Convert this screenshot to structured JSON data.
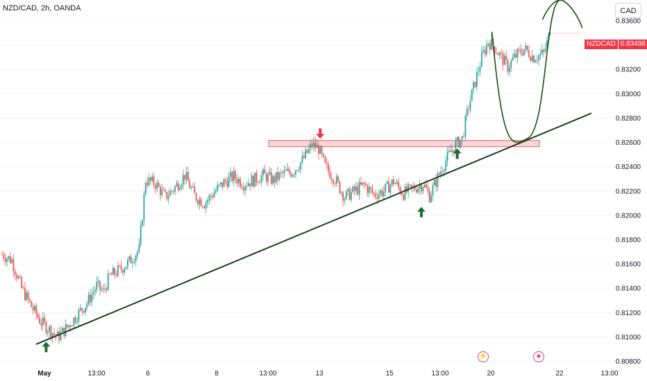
{
  "header": {
    "symbol_title": "NZD/CAD, 2h, OANDA",
    "currency_button": "CAD"
  },
  "price_tag": {
    "symbol": "NZDCAD",
    "value": "0.83498"
  },
  "colors": {
    "up": "#26a69a",
    "down": "#ef5350",
    "trendline": "#1f3a1f",
    "projection": "#1b4d1b",
    "zone_fill": "#f7c9cc",
    "zone_border": "#e45c67",
    "arrow_up": "#1e6b31",
    "arrow_down": "#f23645"
  },
  "events": [
    {
      "icon": "lightning-icon",
      "label": "20"
    },
    {
      "icon": "canada-flag-icon",
      "label": "22"
    }
  ],
  "chart_data": {
    "type": "candlestick",
    "symbol": "NZD/CAD",
    "timeframe": "2h",
    "broker": "OANDA",
    "ylim": [
      0.8078,
      0.8368
    ],
    "y_ticks": [
      "0.83600",
      "0.83400",
      "0.83200",
      "0.83000",
      "0.82800",
      "0.82600",
      "0.82400",
      "0.82200",
      "0.82000",
      "0.81800",
      "0.81600",
      "0.81400",
      "0.81200",
      "0.81000",
      "0.80800"
    ],
    "x_ticks": [
      "May",
      "13:00",
      "6",
      "8",
      "13:00",
      "13",
      "15",
      "13:00",
      "20",
      "22",
      "13:00"
    ],
    "x_tick_bold": [
      "May"
    ],
    "last_price": 0.83498,
    "close_path": [
      [
        0,
        0.8168
      ],
      [
        6,
        0.8163
      ],
      [
        12,
        0.814
      ],
      [
        18,
        0.8125
      ],
      [
        24,
        0.8112
      ],
      [
        30,
        0.8105
      ],
      [
        34,
        0.81
      ],
      [
        40,
        0.8108
      ],
      [
        46,
        0.8118
      ],
      [
        52,
        0.8128
      ],
      [
        58,
        0.8142
      ],
      [
        62,
        0.8137
      ],
      [
        66,
        0.815
      ],
      [
        72,
        0.8155
      ],
      [
        78,
        0.8162
      ],
      [
        84,
        0.8172
      ],
      [
        88,
        0.8229
      ],
      [
        94,
        0.8226
      ],
      [
        100,
        0.8215
      ],
      [
        106,
        0.8223
      ],
      [
        112,
        0.8233
      ],
      [
        118,
        0.8216
      ],
      [
        124,
        0.821
      ],
      [
        130,
        0.8219
      ],
      [
        136,
        0.8227
      ],
      [
        142,
        0.8232
      ],
      [
        148,
        0.8226
      ],
      [
        154,
        0.8229
      ],
      [
        160,
        0.8233
      ],
      [
        166,
        0.8229
      ],
      [
        172,
        0.8234
      ],
      [
        178,
        0.8236
      ],
      [
        184,
        0.8245
      ],
      [
        190,
        0.8258
      ],
      [
        194,
        0.8255
      ],
      [
        198,
        0.824
      ],
      [
        204,
        0.823
      ],
      [
        210,
        0.8215
      ],
      [
        216,
        0.822
      ],
      [
        222,
        0.8225
      ],
      [
        228,
        0.8217
      ],
      [
        234,
        0.822
      ],
      [
        240,
        0.8228
      ],
      [
        246,
        0.8218
      ],
      [
        252,
        0.8222
      ],
      [
        258,
        0.8226
      ],
      [
        262,
        0.8216
      ],
      [
        266,
        0.8228
      ],
      [
        270,
        0.824
      ],
      [
        274,
        0.825
      ],
      [
        278,
        0.8258
      ],
      [
        282,
        0.8263
      ],
      [
        286,
        0.829
      ],
      [
        290,
        0.831
      ],
      [
        294,
        0.833
      ],
      [
        298,
        0.8343
      ],
      [
        302,
        0.8338
      ],
      [
        306,
        0.833
      ],
      [
        310,
        0.8322
      ],
      [
        314,
        0.833
      ],
      [
        320,
        0.8337
      ],
      [
        326,
        0.833
      ],
      [
        332,
        0.8333
      ],
      [
        336,
        0.835
      ]
    ],
    "candles_count": 337,
    "support_zone": {
      "top": 0.82616,
      "bottom": 0.8258
    },
    "trendline": {
      "start": [
        0,
        0.8094
      ],
      "end": [
        400,
        0.8284
      ]
    },
    "annotations": [
      {
        "type": "arrow-up",
        "x": 27,
        "price": 0.8096
      },
      {
        "type": "arrow-down",
        "x": 195,
        "price": 0.8263
      },
      {
        "type": "arrow-up",
        "x": 257,
        "price": 0.8207
      },
      {
        "type": "arrow-up",
        "x": 279,
        "price": 0.8255
      }
    ],
    "projection": [
      [
        336,
        0.8351
      ],
      [
        360,
        0.8263
      ],
      [
        384,
        0.8377
      ],
      [
        398,
        0.8354
      ]
    ]
  }
}
